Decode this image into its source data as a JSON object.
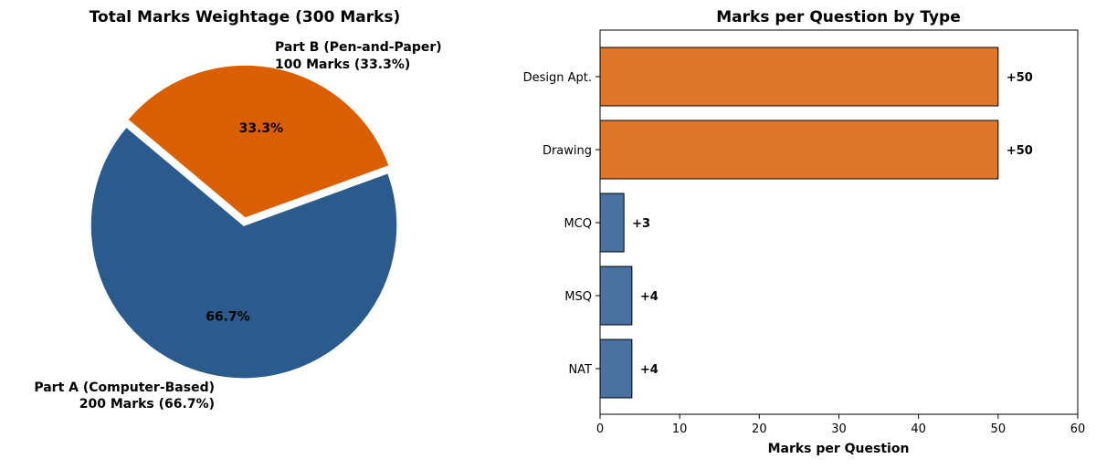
{
  "chart_data": [
    {
      "type": "pie",
      "title": "Total Marks Weightage (300 Marks)",
      "slices": [
        {
          "name": "Part A (Computer-Based)",
          "value": 200,
          "percent_label": "66.7%",
          "label_line1": "Part A (Computer-Based)",
          "label_line2": "200 Marks (66.7%)",
          "color": "#2a5b8c"
        },
        {
          "name": "Part B (Pen-and-Paper)",
          "value": 100,
          "percent_label": "33.3%",
          "label_line1": "Part B (Pen-and-Paper)",
          "label_line2": "100 Marks (33.3%)",
          "color": "#d95f02"
        }
      ]
    },
    {
      "type": "bar",
      "orientation": "horizontal",
      "title": "Marks per Question by Type",
      "xlabel": "Marks per Question",
      "ylabel": "",
      "xlim": [
        0,
        60
      ],
      "xticks": [
        0,
        10,
        20,
        30,
        40,
        50,
        60
      ],
      "categories": [
        "Design Apt.",
        "Drawing",
        "MCQ",
        "MSQ",
        "NAT"
      ],
      "values": [
        50,
        50,
        3,
        4,
        4
      ],
      "value_labels": [
        "+50",
        "+50",
        "+3",
        "+4",
        "+4"
      ],
      "colors": [
        "#e07628",
        "#e07628",
        "#4a72a0",
        "#4a72a0",
        "#4a72a0"
      ]
    }
  ]
}
